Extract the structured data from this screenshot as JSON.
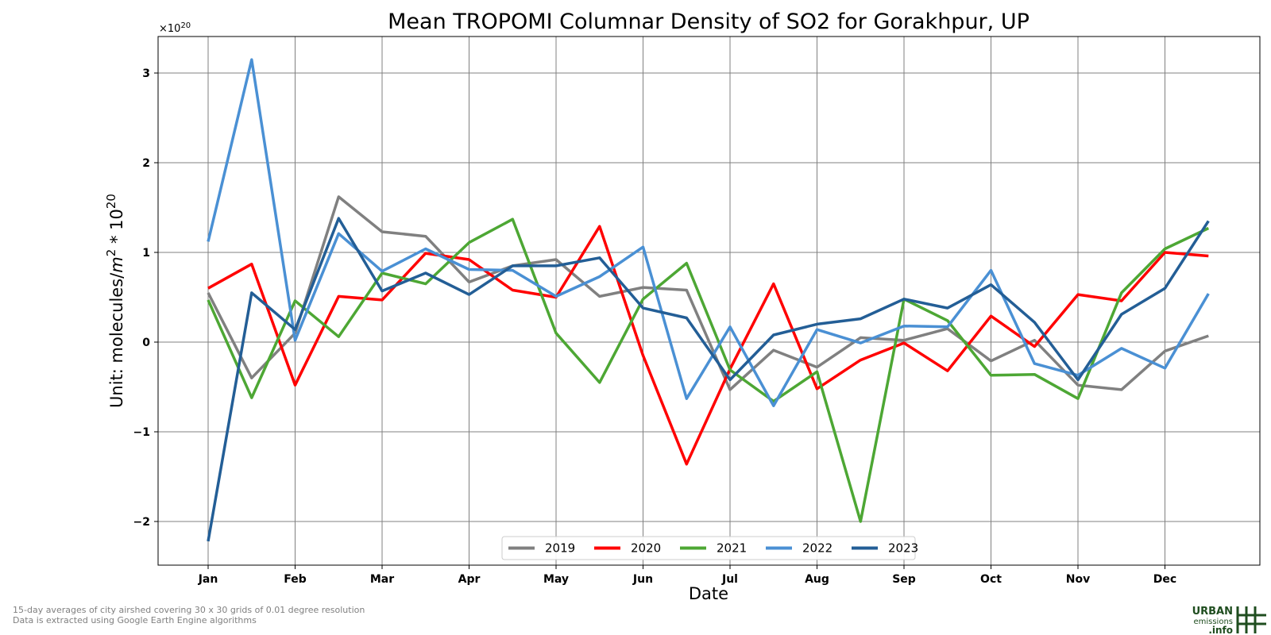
{
  "chart_data": {
    "type": "line",
    "title": "Mean TROPOMI Columnar Density of SO2 for Gorakhpur, UP",
    "xlabel": "Date",
    "ylabel_prefix": "Unit: molecules/",
    "ylabel_m": "m",
    "ylabel_m_exp": "2",
    "ylabel_mid": " * 10",
    "ylabel_exp": "20",
    "offset_base": "×10",
    "offset_exp": "20",
    "ylim": [
      -2.5,
      3.4
    ],
    "yticks": [
      -2,
      -1,
      0,
      1,
      2,
      3
    ],
    "ytick_labels": [
      "−2",
      "−1",
      "0",
      "1",
      "2",
      "3"
    ],
    "xticks": [
      "Jan",
      "Feb",
      "Mar",
      "Apr",
      "May",
      "Jun",
      "Jul",
      "Aug",
      "Sep",
      "Oct",
      "Nov",
      "Dec"
    ],
    "grid": true,
    "legend_position": "bottom-center",
    "x_points_per_month": 2,
    "series": [
      {
        "name": "2019",
        "color": "#808080",
        "values": [
          0.55,
          -0.4,
          0.1,
          1.62,
          1.23,
          1.18,
          0.67,
          0.85,
          0.92,
          0.51,
          0.61,
          0.58,
          -0.53,
          -0.09,
          -0.28,
          0.05,
          0.02,
          0.15,
          -0.21,
          0.02,
          -0.48,
          -0.53,
          -0.1,
          0.07
        ]
      },
      {
        "name": "2020",
        "color": "#ff0000",
        "values": [
          0.6,
          0.87,
          -0.48,
          0.51,
          0.47,
          0.99,
          0.92,
          0.58,
          0.5,
          1.29,
          -0.15,
          -1.36,
          -0.3,
          0.65,
          -0.52,
          -0.2,
          -0.01,
          -0.32,
          0.29,
          -0.05,
          0.53,
          0.46,
          1.0,
          0.96
        ]
      },
      {
        "name": "2021",
        "color": "#4da734",
        "values": [
          0.47,
          -0.62,
          0.46,
          0.06,
          0.77,
          0.65,
          1.11,
          1.37,
          0.1,
          -0.45,
          0.48,
          0.88,
          -0.31,
          -0.66,
          -0.33,
          -2.0,
          0.48,
          0.24,
          -0.37,
          -0.36,
          -0.63,
          0.55,
          1.04,
          1.27
        ]
      },
      {
        "name": "2022",
        "color": "#4a90d4",
        "values": [
          1.12,
          3.15,
          0.02,
          1.21,
          0.79,
          1.04,
          0.81,
          0.8,
          0.51,
          0.73,
          1.06,
          -0.63,
          0.17,
          -0.71,
          0.14,
          -0.01,
          0.18,
          0.17,
          0.8,
          -0.24,
          -0.37,
          -0.07,
          -0.29,
          0.54
        ]
      },
      {
        "name": "2023",
        "color": "#235e96",
        "values": [
          -2.22,
          0.55,
          0.14,
          1.38,
          0.57,
          0.77,
          0.53,
          0.85,
          0.85,
          0.94,
          0.38,
          0.27,
          -0.42,
          0.08,
          0.2,
          0.26,
          0.48,
          0.38,
          0.64,
          0.22,
          -0.42,
          0.31,
          0.6,
          1.35
        ]
      }
    ]
  },
  "footnotes": [
    "15-day averages of city airshed covering 30 x 30 grids of 0.01 degree resolution",
    "Data is extracted using Google Earth Engine algorithms"
  ],
  "logo": {
    "line1": "URBAN",
    "line2": "emissions",
    "line3": ".info",
    "color": "#1f4d1f"
  }
}
